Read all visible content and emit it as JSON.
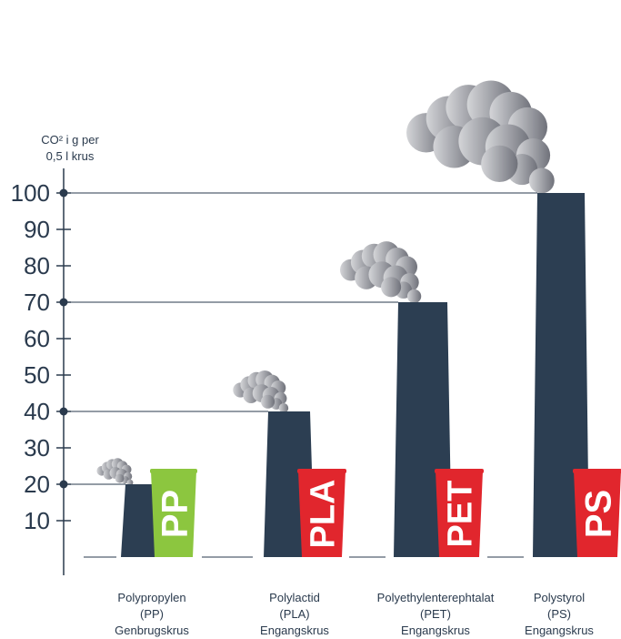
{
  "chart_data": {
    "type": "bar",
    "ylabel_lines": [
      "CO² i g per",
      "0,5 l krus"
    ],
    "ylim": [
      0,
      100
    ],
    "yticks": [
      "10",
      "20",
      "30",
      "40",
      "50",
      "60",
      "70",
      "80",
      "90",
      "100"
    ],
    "categories": [
      [
        "Polypropylen",
        "(PP)",
        "Genbrugskrus"
      ],
      [
        "Polylactid",
        "(PLA)",
        "Engangskrus"
      ],
      [
        "Polyethylenterephtalat",
        "(PET)",
        "Engangskrus"
      ],
      [
        "Polystyrol",
        "(PS)",
        "Engangskrus"
      ]
    ],
    "values": [
      20,
      40,
      70,
      100
    ],
    "cup_labels": [
      "PP",
      "PLA",
      "PET",
      "PS"
    ],
    "cup_colors": [
      "#8cc63f",
      "#e1262d",
      "#e1262d",
      "#e1262d"
    ],
    "bar_color": "#2c3e52",
    "marked_levels": [
      20,
      40,
      70,
      100
    ]
  }
}
